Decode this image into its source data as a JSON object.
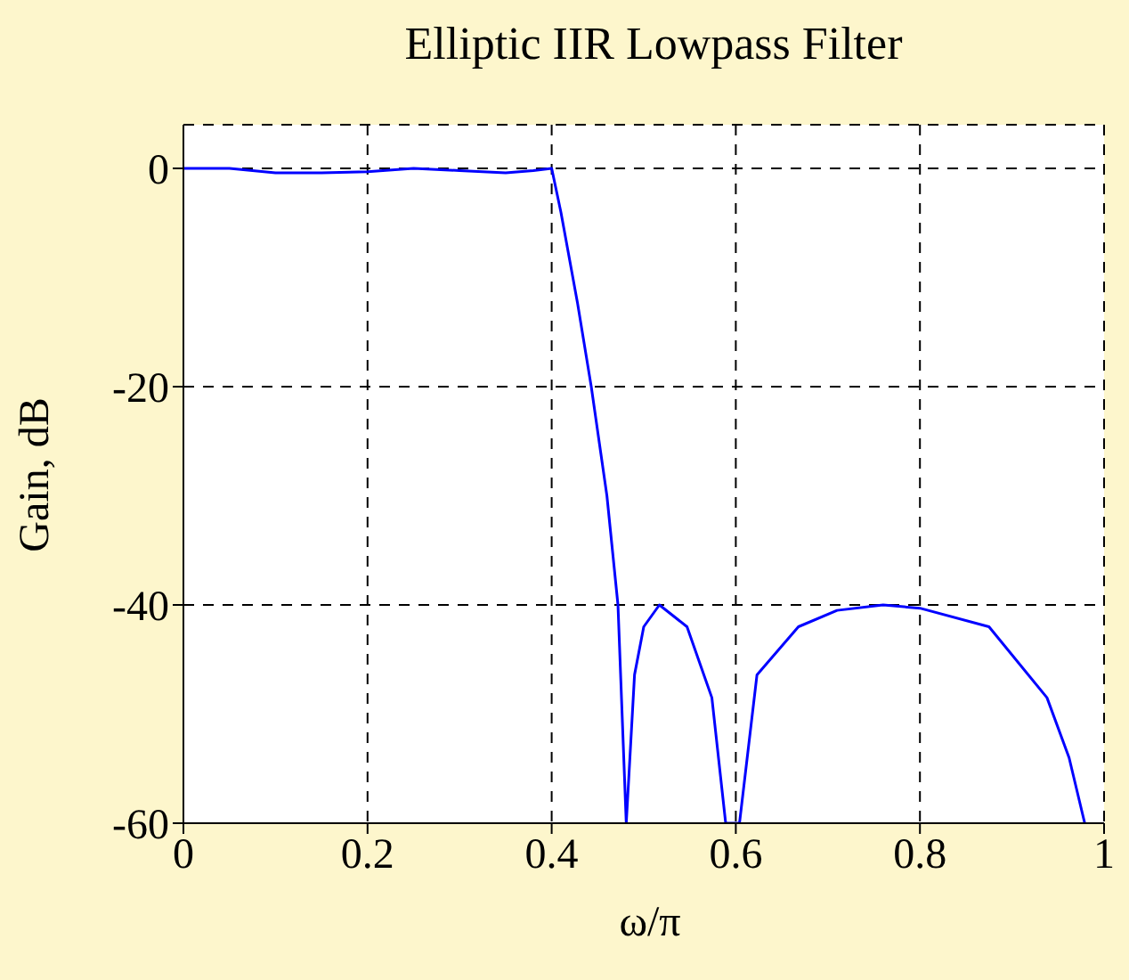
{
  "chart_data": {
    "type": "line",
    "title": "Elliptic IIR Lowpass Filter",
    "xlabel": "ω/π",
    "ylabel": "Gain, dB",
    "x": [
      0,
      0.05,
      0.1,
      0.15,
      0.2,
      0.25,
      0.3,
      0.35,
      0.38,
      0.4,
      0.41,
      0.428,
      0.443,
      0.46,
      0.472,
      0.481,
      0.49,
      0.5,
      0.517,
      0.547,
      0.574,
      0.589,
      0.604,
      0.623,
      0.668,
      0.71,
      0.76,
      0.8,
      0.875,
      0.938,
      0.962,
      0.979
    ],
    "series": [
      {
        "color": "#0000ff",
        "values": [
          0,
          0,
          -0.4,
          -0.4,
          -0.3,
          0,
          -0.2,
          -0.4,
          -0.2,
          0,
          -4,
          -12.3,
          -20,
          -30,
          -40,
          -60,
          -46.4,
          -42,
          -40,
          -42,
          -48.5,
          -60,
          -60,
          -46.4,
          -42,
          -40.5,
          -40,
          -40.3,
          -42,
          -48.5,
          -54,
          -60
        ]
      }
    ],
    "xlim": [
      0,
      1
    ],
    "xticks": [
      0,
      0.2,
      0.4,
      0.6,
      0.8,
      1
    ],
    "ylim": [
      -60,
      4
    ],
    "yticks": [
      -60,
      -40,
      -20,
      0
    ],
    "grid": true,
    "marker": "none",
    "line_style": "solid"
  }
}
